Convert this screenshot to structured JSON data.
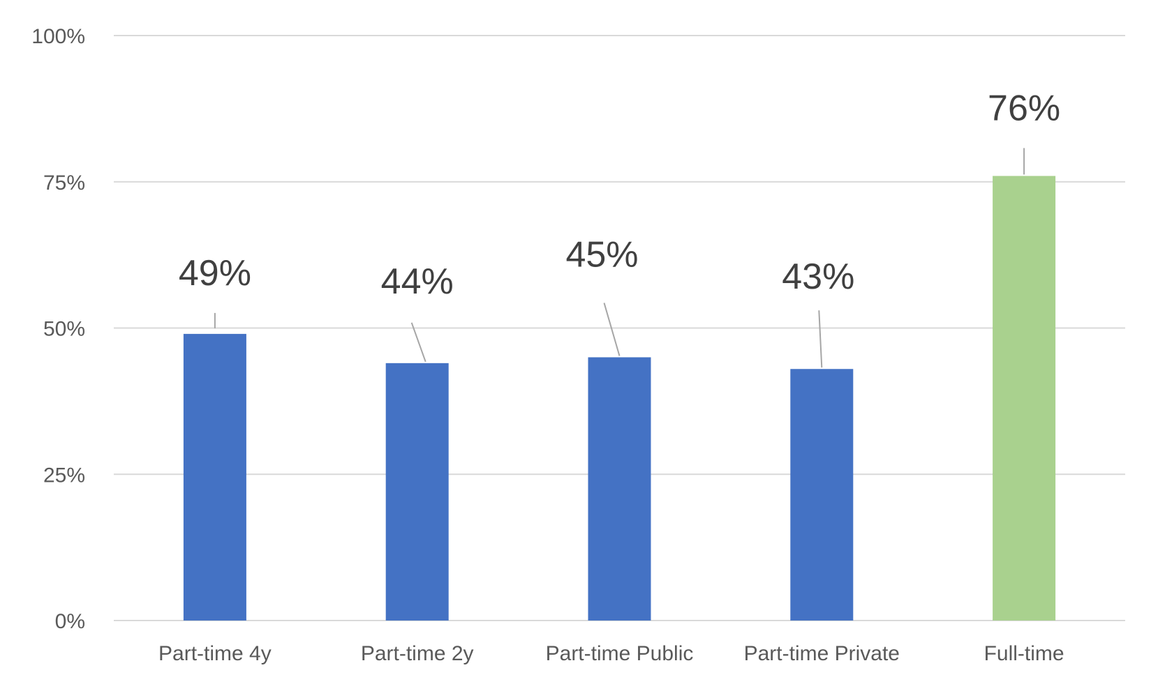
{
  "chart_data": {
    "type": "bar",
    "categories": [
      "Part-time 4y",
      "Part-time 2y",
      "Part-time Public",
      "Part-time Private",
      "Full-time"
    ],
    "values": [
      49,
      44,
      45,
      43,
      76
    ],
    "data_labels": [
      "49%",
      "44%",
      "45%",
      "43%",
      "76%"
    ],
    "colors": [
      "#4472c4",
      "#4472c4",
      "#4472c4",
      "#4472c4",
      "#a9d18e"
    ],
    "ylim": [
      0,
      100
    ],
    "yticks": [
      0,
      25,
      50,
      75,
      100
    ],
    "ytick_labels": [
      "0%",
      "25%",
      "50%",
      "75%",
      "100%"
    ],
    "grid": true,
    "legend": "none",
    "title": "",
    "xlabel": "",
    "ylabel": ""
  }
}
